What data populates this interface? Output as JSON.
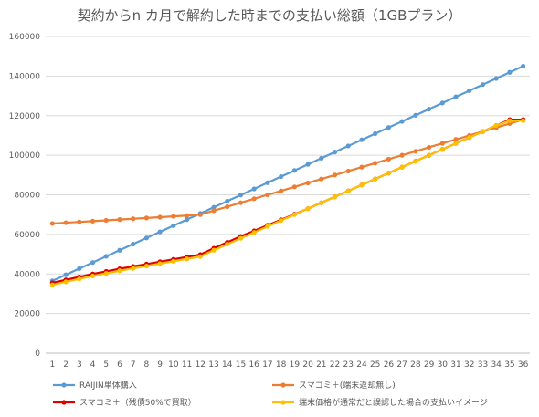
{
  "chart_data": {
    "type": "line",
    "title": "契約からn カ月で解約した時までの支払い総額（1GBプラン）",
    "xlabel": "",
    "ylabel": "",
    "x": [
      1,
      2,
      3,
      4,
      5,
      6,
      7,
      8,
      9,
      10,
      11,
      12,
      13,
      14,
      15,
      16,
      17,
      18,
      19,
      20,
      21,
      22,
      23,
      24,
      25,
      26,
      27,
      28,
      29,
      30,
      31,
      32,
      33,
      34,
      35,
      36
    ],
    "ylim": [
      0,
      160000
    ],
    "yticks": [
      0,
      20000,
      40000,
      60000,
      80000,
      100000,
      120000,
      140000,
      160000
    ],
    "ytick_labels": [
      "0",
      "20000",
      "40000",
      "60000",
      "80000",
      "100000",
      "120000",
      "140000",
      "160000"
    ],
    "grid": "horizontal",
    "legend_position": "bottom",
    "series": [
      {
        "name": "RAIJIN単体購入",
        "color": "#5b9bd5",
        "values": [
          36500,
          39600,
          42700,
          45800,
          48900,
          52000,
          55100,
          58200,
          61300,
          64400,
          67500,
          70600,
          73700,
          76800,
          79900,
          83000,
          86100,
          89200,
          92300,
          95400,
          98500,
          101600,
          104700,
          107800,
          110900,
          114000,
          117100,
          120200,
          123300,
          126400,
          129500,
          132600,
          135700,
          138800,
          141900,
          145000
        ]
      },
      {
        "name": "スマコミ＋(端末返却無し)",
        "color": "#ed7d31",
        "values": [
          65500,
          65900,
          66300,
          66700,
          67100,
          67500,
          67900,
          68300,
          68700,
          69100,
          69500,
          70000,
          72000,
          74000,
          76000,
          78000,
          80000,
          82000,
          84000,
          86000,
          88000,
          90000,
          92000,
          94000,
          96000,
          98000,
          100000,
          102000,
          104000,
          106000,
          108000,
          110000,
          112000,
          114000,
          116000,
          118000
        ]
      },
      {
        "name": "スマコミ＋（残債50%で買取）",
        "color": "#e00000",
        "values": [
          35500,
          37000,
          38500,
          40000,
          41300,
          42600,
          43800,
          45000,
          46200,
          47400,
          48600,
          49800,
          53000,
          56000,
          59000,
          61800,
          64600,
          67400,
          70200,
          73000,
          76000,
          79000,
          82000,
          85000,
          88000,
          91000,
          94000,
          97000,
          100000,
          103000,
          106000,
          109000,
          112000,
          115000,
          118000,
          118000
        ]
      },
      {
        "name": "端末価格が通常だと誤認した場合の支払いイメージ",
        "color": "#ffc000",
        "values": [
          34500,
          36000,
          37500,
          39000,
          40300,
          41600,
          42800,
          44000,
          45200,
          46400,
          47600,
          48800,
          52000,
          55000,
          58000,
          61000,
          64000,
          67000,
          70000,
          73000,
          76000,
          79000,
          82000,
          85000,
          88000,
          91000,
          94000,
          97000,
          100000,
          103000,
          106000,
          109000,
          112000,
          115000,
          117500,
          117500
        ]
      }
    ]
  }
}
